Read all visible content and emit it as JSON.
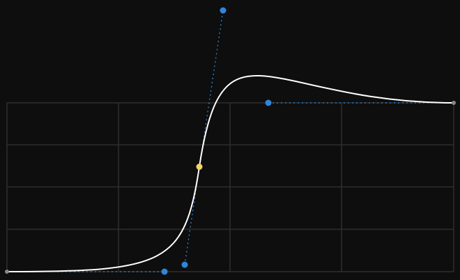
{
  "editor": {
    "background": "#0e0e0e",
    "grid_color": "#2e2e2e",
    "curve_color": "#ffffff",
    "handle_color": "#2f86d9",
    "selected_key_color": "#f2d366",
    "icons": {
      "keyframe": "keyframe-point-icon",
      "handle": "bezier-handle-icon"
    }
  }
}
